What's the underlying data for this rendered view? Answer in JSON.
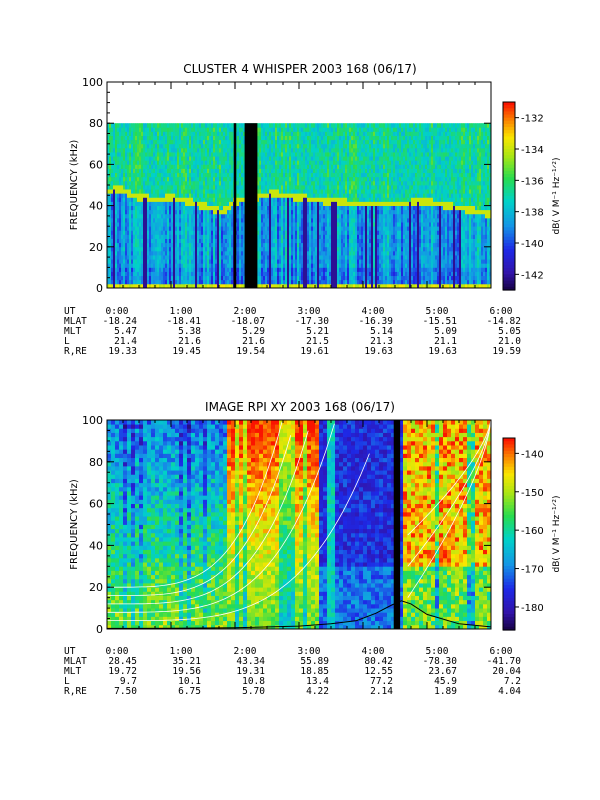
{
  "charts": {
    "panel1": {
      "title": "CLUSTER 4 WHISPER 2003 168 (06/17)",
      "ylabel": "FREQUENCY (kHz)",
      "yticks": [
        "0",
        "20",
        "40",
        "60",
        "80",
        "100"
      ],
      "colorbar_label": "dB( V M⁻¹ Hz⁻¹ᐟ²)",
      "colorbar_ticks": [
        "-132",
        "-134",
        "-136",
        "-138",
        "-140",
        "-142"
      ]
    },
    "panel2": {
      "title": "IMAGE RPI XY 2003 168 (06/17)",
      "ylabel": "FREQUENCY (kHz)",
      "yticks": [
        "0",
        "20",
        "40",
        "60",
        "80",
        "100"
      ],
      "colorbar_label": "dB( V M⁻¹ Hz⁻¹ᐟ²)",
      "colorbar_ticks": [
        "-140",
        "-150",
        "-160",
        "-170",
        "-180"
      ]
    }
  },
  "table1": {
    "row_labels": [
      "UT",
      "MLAT",
      "MLT",
      "L",
      "R,RE"
    ],
    "rows": [
      [
        "0:00",
        "1:00",
        "2:00",
        "3:00",
        "4:00",
        "5:00",
        "6:00"
      ],
      [
        "-18.24",
        "-18.41",
        "-18.07",
        "-17.30",
        "-16.39",
        "-15.51",
        "-14.82"
      ],
      [
        "5.47",
        "5.38",
        "5.29",
        "5.21",
        "5.14",
        "5.09",
        "5.05"
      ],
      [
        "21.4",
        "21.6",
        "21.6",
        "21.5",
        "21.3",
        "21.1",
        "21.0"
      ],
      [
        "19.33",
        "19.45",
        "19.54",
        "19.61",
        "19.63",
        "19.63",
        "19.59"
      ]
    ]
  },
  "table2": {
    "row_labels": [
      "UT",
      "MLAT",
      "MLT",
      "L",
      "R,RE"
    ],
    "rows": [
      [
        "0:00",
        "1:00",
        "2:00",
        "3:00",
        "4:00",
        "5:00",
        "6:00"
      ],
      [
        "28.45",
        "35.21",
        "43.34",
        "55.89",
        "80.42",
        "-78.30",
        "-41.70"
      ],
      [
        "19.72",
        "19.56",
        "19.31",
        "18.85",
        "12.55",
        "23.67",
        "20.04"
      ],
      [
        "9.7",
        "10.1",
        "10.8",
        "13.4",
        "77.2",
        "45.9",
        "7.2"
      ],
      [
        "7.50",
        "6.75",
        "5.70",
        "4.22",
        "2.14",
        "1.89",
        "4.04"
      ]
    ]
  },
  "chart_data": [
    {
      "type": "heatmap",
      "title": "CLUSTER 4 WHISPER 2003 168 (06/17)",
      "xlabel": "",
      "ylabel": "FREQUENCY (kHz)",
      "x_ticks": [
        "0:00",
        "1:00",
        "2:00",
        "3:00",
        "4:00",
        "5:00",
        "6:00"
      ],
      "xlim_hours": [
        0,
        6
      ],
      "ylim": [
        0,
        100
      ],
      "data_band_top_khz": 80,
      "colorbar": {
        "label": "dB( V M⁻¹ Hz⁻¹ᐟ²)",
        "range": [
          -143,
          -131
        ],
        "ticks": [
          -132,
          -134,
          -136,
          -138,
          -140,
          -142
        ]
      },
      "data_gaps_hours": [
        [
          1.98,
          2.02
        ],
        [
          2.15,
          2.35
        ]
      ],
      "plasma_line_khz": [
        {
          "t": 0.0,
          "f": 47
        },
        {
          "t": 0.2,
          "f": 48
        },
        {
          "t": 0.5,
          "f": 44
        },
        {
          "t": 0.8,
          "f": 43
        },
        {
          "t": 1.0,
          "f": 44
        },
        {
          "t": 1.3,
          "f": 42
        },
        {
          "t": 1.6,
          "f": 39
        },
        {
          "t": 1.8,
          "f": 37
        },
        {
          "t": 2.0,
          "f": 42
        },
        {
          "t": 2.6,
          "f": 46
        },
        {
          "t": 3.0,
          "f": 44
        },
        {
          "t": 3.5,
          "f": 42
        },
        {
          "t": 4.0,
          "f": 41
        },
        {
          "t": 4.5,
          "f": 41
        },
        {
          "t": 5.0,
          "f": 42
        },
        {
          "t": 5.5,
          "f": 39
        },
        {
          "t": 6.0,
          "f": 36
        }
      ]
    },
    {
      "type": "heatmap",
      "title": "IMAGE RPI XY 2003 168 (06/17)",
      "xlabel": "",
      "ylabel": "FREQUENCY (kHz)",
      "x_ticks": [
        "0:00",
        "1:00",
        "2:00",
        "3:00",
        "4:00",
        "5:00",
        "6:00"
      ],
      "xlim_hours": [
        0,
        6
      ],
      "ylim": [
        0,
        100
      ],
      "colorbar": {
        "label": "dB( V M⁻¹ Hz⁻¹ᐟ²)",
        "range": [
          -186,
          -136
        ],
        "ticks": [
          -140,
          -150,
          -160,
          -170,
          -180
        ]
      },
      "data_gaps_hours": [
        [
          4.48,
          4.58
        ]
      ],
      "cyclotron_curve_khz": [
        {
          "t": 0.0,
          "f": 0.3
        },
        {
          "t": 1.0,
          "f": 0.4
        },
        {
          "t": 2.0,
          "f": 0.6
        },
        {
          "t": 3.0,
          "f": 1.4
        },
        {
          "t": 3.5,
          "f": 2.5
        },
        {
          "t": 3.9,
          "f": 4.0
        },
        {
          "t": 4.2,
          "f": 7.5
        },
        {
          "t": 4.45,
          "f": 11.5
        },
        {
          "t": 4.6,
          "f": 13.5
        },
        {
          "t": 4.75,
          "f": 12.0
        },
        {
          "t": 5.0,
          "f": 7.0
        },
        {
          "t": 5.5,
          "f": 2.5
        },
        {
          "t": 6.0,
          "f": 1.0
        }
      ]
    }
  ]
}
